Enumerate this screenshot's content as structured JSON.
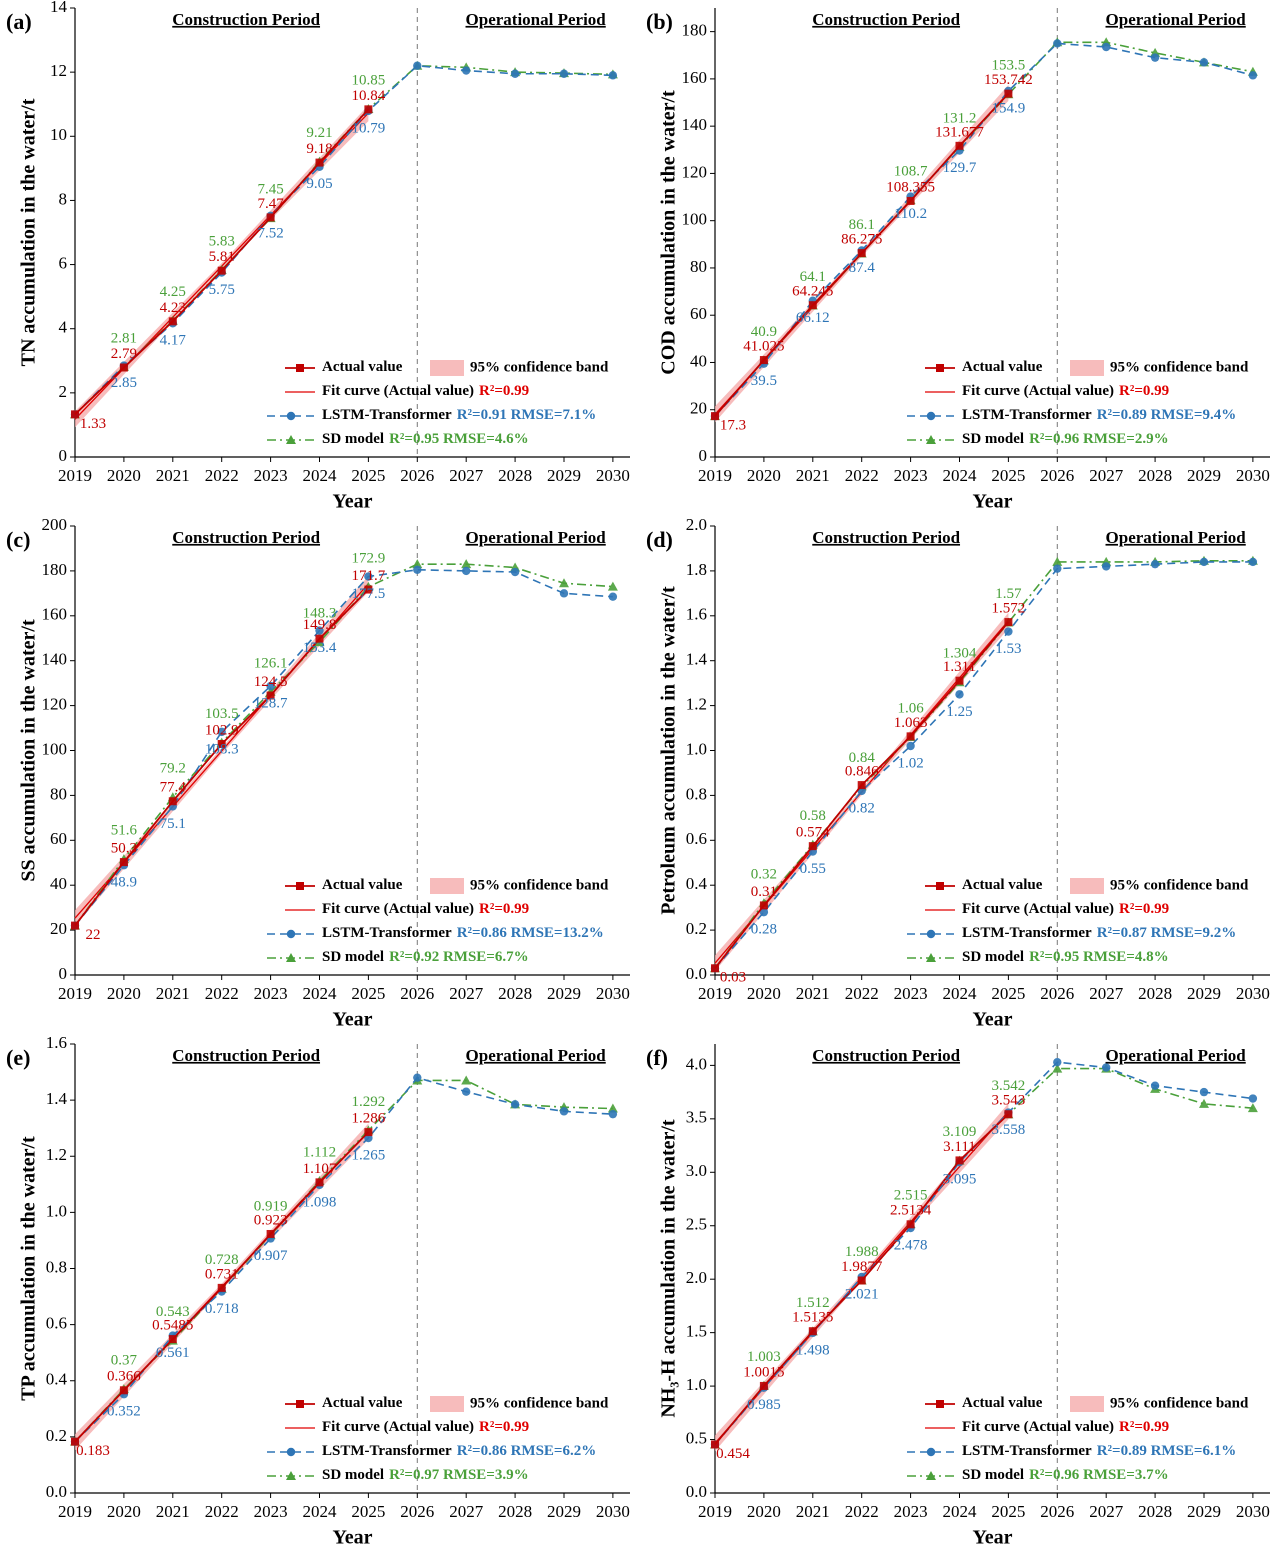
{
  "chart_data": [
    {
      "type": "line",
      "panel": "(a)",
      "periods": [
        "Construction Period",
        "Operational Period"
      ],
      "ylabel": "TN accumulation in the water/t",
      "xlabel": "Year",
      "x": [
        2019,
        2020,
        2021,
        2022,
        2023,
        2024,
        2025,
        2026,
        2027,
        2028,
        2029,
        2030
      ],
      "xlim": [
        2019,
        2030.35
      ],
      "xticks": [
        2019,
        2020,
        2021,
        2022,
        2023,
        2024,
        2025,
        2026,
        2027,
        2028,
        2029,
        2030
      ],
      "ylim": [
        0,
        14
      ],
      "yticks": [
        0,
        2,
        4,
        6,
        8,
        10,
        12,
        14
      ],
      "series": [
        {
          "name": "Actual value",
          "color": "#c00000",
          "marker": "square",
          "values": [
            1.33,
            2.79,
            4.23,
            5.81,
            7.47,
            9.18,
            10.84,
            null,
            null,
            null,
            null,
            null
          ],
          "value_labels": [
            "1.33",
            "2.79",
            "4.23",
            "5.81",
            "7.47",
            "9.18",
            "10.84",
            null,
            null,
            null,
            null,
            null
          ]
        },
        {
          "name": "LSTM-Transformer",
          "stats": "R²=0.91 RMSE=7.1%",
          "color": "#2e75b6",
          "marker": "circle",
          "dash": "dashed",
          "values": [
            1.33,
            2.85,
            4.17,
            5.75,
            7.52,
            9.05,
            10.79,
            12.2,
            12.05,
            11.95,
            11.95,
            11.9
          ],
          "value_labels": [
            null,
            "2.85",
            "4.17",
            "5.75",
            "7.52",
            "9.05",
            "10.79",
            null,
            null,
            null,
            null,
            null
          ]
        },
        {
          "name": "SD model",
          "stats": "R²=0.95 RMSE=4.6%",
          "color": "#4aa03a",
          "marker": "triangle",
          "dash": "dashdot",
          "values": [
            1.33,
            2.81,
            4.25,
            5.83,
            7.45,
            9.21,
            10.85,
            12.2,
            12.15,
            12.0,
            11.97,
            11.93
          ],
          "value_labels": [
            null,
            "2.81",
            "4.25",
            "5.83",
            "7.45",
            "9.21",
            "10.85",
            null,
            null,
            null,
            null,
            null
          ]
        }
      ],
      "fit": {
        "name": "Fit curve (Actual value)",
        "stats": "R²=0.99",
        "color": "#e00000"
      },
      "band": {
        "name": "95% confidence band",
        "color": "#f4a6a6"
      }
    },
    {
      "type": "line",
      "panel": "(b)",
      "periods": [
        "Construction Period",
        "Operational Period"
      ],
      "ylabel": "COD accumulation in the water/t",
      "xlabel": "Year",
      "x": [
        2019,
        2020,
        2021,
        2022,
        2023,
        2024,
        2025,
        2026,
        2027,
        2028,
        2029,
        2030
      ],
      "xlim": [
        2019,
        2030.35
      ],
      "xticks": [
        2019,
        2020,
        2021,
        2022,
        2023,
        2024,
        2025,
        2026,
        2027,
        2028,
        2029,
        2030
      ],
      "ylim": [
        0,
        190
      ],
      "yticks": [
        0,
        20,
        40,
        60,
        80,
        100,
        120,
        140,
        160,
        180
      ],
      "series": [
        {
          "name": "Actual value",
          "color": "#c00000",
          "marker": "square",
          "values": [
            17.3,
            41.025,
            64.245,
            86.275,
            108.355,
            131.677,
            153.742,
            null,
            null,
            null,
            null,
            null
          ],
          "value_labels": [
            "17.3",
            "41.025",
            "64.245",
            "86.275",
            "108.355",
            "131.677",
            "153.742",
            null,
            null,
            null,
            null,
            null
          ]
        },
        {
          "name": "LSTM-Transformer",
          "stats": "R²=0.89 RMSE=9.4%",
          "color": "#2e75b6",
          "marker": "circle",
          "dash": "dashed",
          "values": [
            17.3,
            39.5,
            66.12,
            87.4,
            110.2,
            129.7,
            154.9,
            175,
            173.5,
            169,
            167,
            161.5
          ],
          "value_labels": [
            null,
            "39.5",
            "66.12",
            "87.4",
            "110.2",
            "129.7",
            "154.9",
            null,
            null,
            null,
            null,
            null
          ]
        },
        {
          "name": "SD model",
          "stats": "R²=0.96 RMSE=2.9%",
          "color": "#4aa03a",
          "marker": "triangle",
          "dash": "dashdot",
          "values": [
            17.3,
            40.9,
            64.1,
            86.1,
            108.7,
            131.2,
            153.5,
            175.5,
            175.5,
            171,
            167,
            163
          ],
          "value_labels": [
            null,
            "40.9",
            "64.1",
            "86.1",
            "108.7",
            "131.2",
            "153.5",
            null,
            null,
            null,
            null,
            null
          ]
        }
      ],
      "fit": {
        "name": "Fit curve (Actual value)",
        "stats": "R²=0.99",
        "color": "#e00000"
      },
      "band": {
        "name": "95% confidence band",
        "color": "#f4a6a6"
      }
    },
    {
      "type": "line",
      "panel": "(c)",
      "periods": [
        "Construction Period",
        "Operational Period"
      ],
      "ylabel": "SS accumulation in the water/t",
      "xlabel": "Year",
      "x": [
        2019,
        2020,
        2021,
        2022,
        2023,
        2024,
        2025,
        2026,
        2027,
        2028,
        2029,
        2030
      ],
      "xlim": [
        2019,
        2030.35
      ],
      "xticks": [
        2019,
        2020,
        2021,
        2022,
        2023,
        2024,
        2025,
        2026,
        2027,
        2028,
        2029,
        2030
      ],
      "ylim": [
        0,
        200
      ],
      "yticks": [
        0,
        20,
        40,
        60,
        80,
        100,
        120,
        140,
        160,
        180,
        200
      ],
      "series": [
        {
          "name": "Actual value",
          "color": "#c00000",
          "marker": "square",
          "values": [
            22,
            50.3,
            77.4,
            102.9,
            124.5,
            149.8,
            171.7,
            null,
            null,
            null,
            null,
            null
          ],
          "value_labels": [
            "22",
            "50.3",
            "77.4",
            "102.9",
            "124.5",
            "149.8",
            "171.7",
            null,
            null,
            null,
            null,
            null
          ]
        },
        {
          "name": "LSTM-Transformer",
          "stats": "R²=0.86 RMSE=13.2%",
          "color": "#2e75b6",
          "marker": "circle",
          "dash": "dashed",
          "values": [
            22,
            48.9,
            75.1,
            108.3,
            128.7,
            153.4,
            177.5,
            180.5,
            180,
            179.5,
            170,
            168.5
          ],
          "value_labels": [
            null,
            "48.9",
            "75.1",
            "108.3",
            "128.7",
            "153.4",
            "177.5",
            null,
            null,
            null,
            null,
            null
          ]
        },
        {
          "name": "SD model",
          "stats": "R²=0.92 RMSE=6.7%",
          "color": "#4aa03a",
          "marker": "triangle",
          "dash": "dashdot",
          "values": [
            22,
            51.6,
            79.2,
            103.5,
            126.1,
            148.3,
            172.9,
            183,
            183,
            181.5,
            174.5,
            173
          ],
          "value_labels": [
            null,
            "51.6",
            "79.2",
            "103.5",
            "126.1",
            "148.3",
            "172.9",
            null,
            null,
            null,
            null,
            null
          ]
        }
      ],
      "fit": {
        "name": "Fit curve (Actual value)",
        "stats": "R²=0.99",
        "color": "#e00000"
      },
      "band": {
        "name": "95% confidence band",
        "color": "#f4a6a6"
      }
    },
    {
      "type": "line",
      "panel": "(d)",
      "periods": [
        "Construction Period",
        "Operational Period"
      ],
      "ylabel": "Petroleum accumulation in the water/t",
      "xlabel": "Year",
      "x": [
        2019,
        2020,
        2021,
        2022,
        2023,
        2024,
        2025,
        2026,
        2027,
        2028,
        2029,
        2030
      ],
      "xlim": [
        2019,
        2030.35
      ],
      "xticks": [
        2019,
        2020,
        2021,
        2022,
        2023,
        2024,
        2025,
        2026,
        2027,
        2028,
        2029,
        2030
      ],
      "ylim": [
        0,
        2.0
      ],
      "yticks": [
        {
          "value": 0,
          "label": "0.0"
        },
        0.2,
        0.4,
        0.6,
        0.8,
        {
          "value": 1,
          "label": "1.0"
        },
        1.2,
        1.4,
        1.6,
        1.8,
        {
          "value": 2,
          "label": "2.0"
        }
      ],
      "series": [
        {
          "name": "Actual value",
          "color": "#c00000",
          "marker": "square",
          "values": [
            0.03,
            0.31,
            0.574,
            0.846,
            1.063,
            1.311,
            1.572,
            null,
            null,
            null,
            null,
            null
          ],
          "value_labels": [
            "0.03",
            "0.31",
            "0.574",
            "0.846",
            "1.063",
            "1.311",
            "1.572",
            null,
            null,
            null,
            null,
            null
          ]
        },
        {
          "name": "LSTM-Transformer",
          "stats": "R²=0.87 RMSE=9.2%",
          "color": "#2e75b6",
          "marker": "circle",
          "dash": "dashed",
          "values": [
            0.03,
            0.28,
            0.55,
            0.82,
            1.02,
            1.25,
            1.53,
            1.81,
            1.82,
            1.83,
            1.84,
            1.84
          ],
          "value_labels": [
            null,
            "0.28",
            "0.55",
            "0.82",
            "1.02",
            "1.25",
            "1.53",
            null,
            null,
            null,
            null,
            null
          ]
        },
        {
          "name": "SD model",
          "stats": "R²=0.95 RMSE=4.8%",
          "color": "#4aa03a",
          "marker": "triangle",
          "dash": "dashdot",
          "values": [
            0.03,
            0.32,
            0.58,
            0.84,
            1.06,
            1.304,
            1.57,
            1.84,
            1.84,
            1.84,
            1.845,
            1.845
          ],
          "value_labels": [
            null,
            "0.32",
            "0.58",
            "0.84",
            "1.06",
            "1.304",
            "1.57",
            null,
            null,
            null,
            null,
            null
          ]
        }
      ],
      "fit": {
        "name": "Fit curve (Actual value)",
        "stats": "R²=0.99",
        "color": "#e00000"
      },
      "band": {
        "name": "95% confidence band",
        "color": "#f4a6a6"
      }
    },
    {
      "type": "line",
      "panel": "(e)",
      "periods": [
        "Construction Period",
        "Operational Period"
      ],
      "ylabel": "TP accumulation in the water/t",
      "xlabel": "Year",
      "x": [
        2019,
        2020,
        2021,
        2022,
        2023,
        2024,
        2025,
        2026,
        2027,
        2028,
        2029,
        2030
      ],
      "xlim": [
        2019,
        2030.35
      ],
      "xticks": [
        2019,
        2020,
        2021,
        2022,
        2023,
        2024,
        2025,
        2026,
        2027,
        2028,
        2029,
        2030
      ],
      "ylim": [
        0,
        1.6
      ],
      "yticks": [
        {
          "value": 0,
          "label": "0.0"
        },
        0.2,
        0.4,
        0.6,
        0.8,
        {
          "value": 1,
          "label": "1.0"
        },
        1.2,
        1.4,
        1.6
      ],
      "series": [
        {
          "name": "Actual value",
          "color": "#c00000",
          "marker": "square",
          "values": [
            0.183,
            0.366,
            0.5485,
            0.731,
            0.923,
            1.107,
            1.286,
            null,
            null,
            null,
            null,
            null
          ],
          "value_labels": [
            "0.183",
            "0.366",
            "0.5485",
            "0.731",
            "0.923",
            "1.107",
            "1.286",
            null,
            null,
            null,
            null,
            null
          ]
        },
        {
          "name": "LSTM-Transformer",
          "stats": "R²=0.86 RMSE=6.2%",
          "color": "#2e75b6",
          "marker": "circle",
          "dash": "dashed",
          "values": [
            0.183,
            0.352,
            0.561,
            0.718,
            0.907,
            1.098,
            1.265,
            1.48,
            1.43,
            1.385,
            1.36,
            1.35
          ],
          "value_labels": [
            null,
            "0.352",
            "0.561",
            "0.718",
            "0.907",
            "1.098",
            "1.265",
            null,
            null,
            null,
            null,
            null
          ]
        },
        {
          "name": "SD model",
          "stats": "R²=0.97 RMSE=3.9%",
          "color": "#4aa03a",
          "marker": "triangle",
          "dash": "dashdot",
          "values": [
            0.183,
            0.37,
            0.543,
            0.728,
            0.919,
            1.112,
            1.292,
            1.47,
            1.47,
            1.385,
            1.375,
            1.37
          ],
          "value_labels": [
            null,
            "0.37",
            "0.543",
            "0.728",
            "0.919",
            "1.112",
            "1.292",
            null,
            null,
            null,
            null,
            null
          ]
        }
      ],
      "fit": {
        "name": "Fit curve (Actual value)",
        "stats": "R²=0.99",
        "color": "#e00000"
      },
      "band": {
        "name": "95% confidence band",
        "color": "#f4a6a6"
      }
    },
    {
      "type": "line",
      "panel": "(f)",
      "periods": [
        "Construction Period",
        "Operational Period"
      ],
      "ylabel": "NH₃-H accumulation in the water/t",
      "xlabel": "Year",
      "x": [
        2019,
        2020,
        2021,
        2022,
        2023,
        2024,
        2025,
        2026,
        2027,
        2028,
        2029,
        2030
      ],
      "xlim": [
        2019,
        2030.35
      ],
      "xticks": [
        2019,
        2020,
        2021,
        2022,
        2023,
        2024,
        2025,
        2026,
        2027,
        2028,
        2029,
        2030
      ],
      "ylim": [
        0,
        4.2
      ],
      "yticks": [
        {
          "value": 0,
          "label": "0.0"
        },
        0.5,
        {
          "value": 1,
          "label": "1.0"
        },
        1.5,
        {
          "value": 2,
          "label": "2.0"
        },
        2.5,
        {
          "value": 3,
          "label": "3.0"
        },
        3.5,
        {
          "value": 4,
          "label": "4.0"
        }
      ],
      "series": [
        {
          "name": "Actual value",
          "color": "#c00000",
          "marker": "square",
          "values": [
            0.454,
            1.0015,
            1.5135,
            1.9877,
            2.5134,
            3.111,
            3.543,
            null,
            null,
            null,
            null,
            null
          ],
          "value_labels": [
            "0.454",
            "1.0015",
            "1.5135",
            "1.9877",
            "2.5134",
            "3.111",
            "3.543",
            null,
            null,
            null,
            null,
            null
          ]
        },
        {
          "name": "LSTM-Transformer",
          "stats": "R²=0.89 RMSE=6.1%",
          "color": "#2e75b6",
          "marker": "circle",
          "dash": "dashed",
          "values": [
            0.454,
            0.985,
            1.498,
            2.021,
            2.478,
            3.095,
            3.558,
            4.03,
            3.98,
            3.81,
            3.75,
            3.69
          ],
          "value_labels": [
            null,
            "0.985",
            "1.498",
            "2.021",
            "2.478",
            "3.095",
            "3.558",
            null,
            null,
            null,
            null,
            null
          ]
        },
        {
          "name": "SD model",
          "stats": "R²=0.96 RMSE=3.7%",
          "color": "#4aa03a",
          "marker": "triangle",
          "dash": "dashdot",
          "values": [
            0.454,
            1.003,
            1.512,
            1.988,
            2.515,
            3.109,
            3.542,
            3.97,
            3.97,
            3.78,
            3.64,
            3.6
          ],
          "value_labels": [
            null,
            "1.003",
            "1.512",
            "1.988",
            "2.515",
            "3.109",
            "3.542",
            null,
            null,
            null,
            null,
            null
          ]
        }
      ],
      "fit": {
        "name": "Fit curve (Actual value)",
        "stats": "R²=0.99",
        "color": "#e00000"
      },
      "band": {
        "name": "95% confidence band",
        "color": "#f4a6a6"
      }
    }
  ]
}
